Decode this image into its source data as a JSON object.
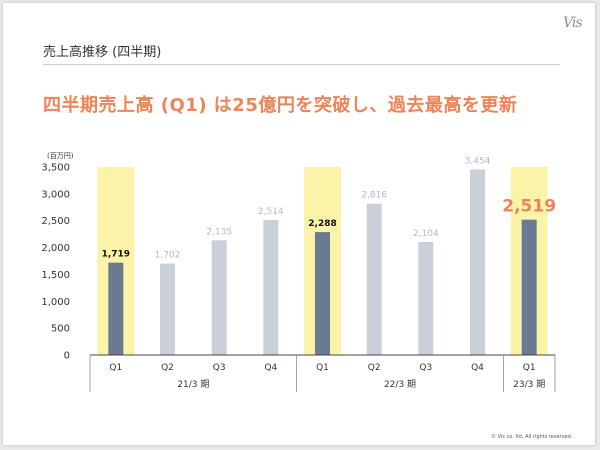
{
  "page": {
    "title": "売上高推移 (四半期)",
    "headline": "四半期売上高 (Q1) は25億円を突破し、過去最高を更新",
    "unit_label": "(百万円)",
    "logo": "Vis",
    "copyright": "© Vis co. ltd. All rights reserved."
  },
  "chart_data": {
    "type": "bar",
    "title": "売上高推移 (四半期)",
    "ylabel": "(百万円)",
    "ylim": [
      0,
      3500
    ],
    "yticks": [
      0,
      500,
      1000,
      1500,
      2000,
      2500,
      3000,
      3500
    ],
    "ytick_labels": [
      "0",
      "500",
      "1,000",
      "1,500",
      "2,000",
      "2,500",
      "3,000",
      "3,500"
    ],
    "categories": [
      "Q1",
      "Q2",
      "Q3",
      "Q4",
      "Q1",
      "Q2",
      "Q3",
      "Q4",
      "Q1"
    ],
    "values": [
      1719,
      1702,
      2135,
      2514,
      2288,
      2816,
      2104,
      3454,
      2519
    ],
    "value_labels": [
      "1,719",
      "1,702",
      "2,135",
      "2,514",
      "2,288",
      "2,816",
      "2,104",
      "3,454",
      "2,519"
    ],
    "highlighted": [
      true,
      false,
      false,
      false,
      true,
      false,
      false,
      false,
      true
    ],
    "latest_index": 8,
    "groups": [
      {
        "label": "21/3 期",
        "count": 4
      },
      {
        "label": "22/3 期",
        "count": 4
      },
      {
        "label": "23/3 期",
        "count": 1
      }
    ],
    "colors": {
      "highlight_bar": "#6b7a93",
      "normal_bar": "#c9d0da",
      "band": "#fbf4a8",
      "latest_label": "#ec8457",
      "normal_label": "#b3b9c3",
      "highlight_label": "#111111"
    }
  }
}
